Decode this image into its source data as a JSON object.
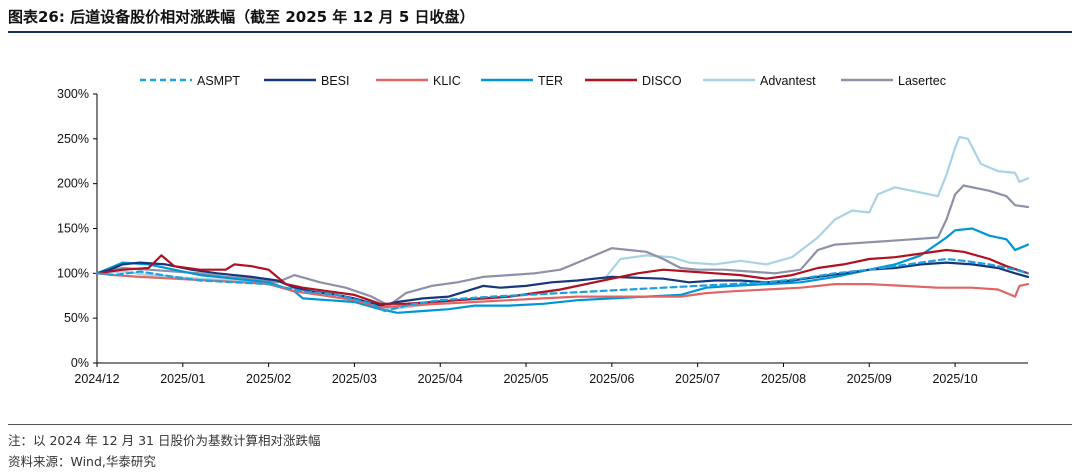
{
  "header": {
    "title": "图表26:   后道设备股价相对涨跌幅（截至 2025 年 12 月 5 日收盘）"
  },
  "footer": {
    "note": "注：以 2024 年 12 月 31 日股价为基数计算相对涨跌幅",
    "source": "资料来源：Wind,华泰研究"
  },
  "chart_data": {
    "type": "line",
    "title": "后道设备股价相对涨跌幅（截至 2025 年 12 月 5 日收盘）",
    "xlabel": "",
    "ylabel": "",
    "x_ticks": [
      "2024/12",
      "2025/01",
      "2025/02",
      "2025/03",
      "2025/04",
      "2025/05",
      "2025/06",
      "2025/07",
      "2025/08",
      "2025/09",
      "2025/10"
    ],
    "y_ticks": [
      "0%",
      "50%",
      "100%",
      "150%",
      "200%",
      "250%",
      "300%"
    ],
    "ylim": [
      0,
      300
    ],
    "x_unit": "months since 2024-12-31",
    "xlim": [
      0,
      10.85
    ],
    "grid": false,
    "legend_position": "top",
    "series": [
      {
        "name": "ASMPT",
        "color": "#1ba1e2",
        "dash": true,
        "points": [
          [
            0,
            100
          ],
          [
            0.2,
            98
          ],
          [
            0.5,
            102
          ],
          [
            0.9,
            96
          ],
          [
            1.2,
            92
          ],
          [
            1.6,
            90
          ],
          [
            2.0,
            88
          ],
          [
            2.4,
            80
          ],
          [
            2.8,
            76
          ],
          [
            3.2,
            66
          ],
          [
            3.35,
            58
          ],
          [
            3.7,
            66
          ],
          [
            4.0,
            70
          ],
          [
            4.3,
            72
          ],
          [
            4.6,
            74
          ],
          [
            5.0,
            76
          ],
          [
            5.4,
            78
          ],
          [
            5.8,
            80
          ],
          [
            6.2,
            82
          ],
          [
            6.6,
            84
          ],
          [
            7.0,
            86
          ],
          [
            7.4,
            88
          ],
          [
            7.8,
            90
          ],
          [
            8.2,
            94
          ],
          [
            8.6,
            100
          ],
          [
            9.0,
            104
          ],
          [
            9.3,
            108
          ],
          [
            9.6,
            112
          ],
          [
            9.9,
            116
          ],
          [
            10.1,
            114
          ],
          [
            10.4,
            110
          ],
          [
            10.7,
            104
          ],
          [
            10.85,
            100
          ]
        ]
      },
      {
        "name": "BESI",
        "color": "#16387a",
        "dash": false,
        "points": [
          [
            0,
            100
          ],
          [
            0.15,
            104
          ],
          [
            0.3,
            110
          ],
          [
            0.5,
            112
          ],
          [
            0.8,
            110
          ],
          [
            1.1,
            104
          ],
          [
            1.4,
            100
          ],
          [
            1.8,
            96
          ],
          [
            2.1,
            92
          ],
          [
            2.3,
            84
          ],
          [
            2.5,
            80
          ],
          [
            2.8,
            76
          ],
          [
            3.0,
            72
          ],
          [
            3.3,
            64
          ],
          [
            3.5,
            68
          ],
          [
            3.8,
            72
          ],
          [
            4.1,
            74
          ],
          [
            4.3,
            80
          ],
          [
            4.5,
            86
          ],
          [
            4.7,
            84
          ],
          [
            5.0,
            86
          ],
          [
            5.3,
            90
          ],
          [
            5.6,
            92
          ],
          [
            6.0,
            96
          ],
          [
            6.3,
            95
          ],
          [
            6.6,
            94
          ],
          [
            6.9,
            90
          ],
          [
            7.2,
            92
          ],
          [
            7.5,
            92
          ],
          [
            7.8,
            90
          ],
          [
            8.1,
            92
          ],
          [
            8.4,
            96
          ],
          [
            8.7,
            100
          ],
          [
            9.0,
            104
          ],
          [
            9.3,
            106
          ],
          [
            9.6,
            110
          ],
          [
            9.9,
            112
          ],
          [
            10.2,
            110
          ],
          [
            10.5,
            106
          ],
          [
            10.7,
            100
          ],
          [
            10.85,
            96
          ]
        ]
      },
      {
        "name": "KLIC",
        "color": "#e06666",
        "dash": false,
        "points": [
          [
            0,
            100
          ],
          [
            0.2,
            98
          ],
          [
            0.5,
            96
          ],
          [
            0.9,
            94
          ],
          [
            1.3,
            92
          ],
          [
            1.7,
            90
          ],
          [
            2.0,
            88
          ],
          [
            2.3,
            80
          ],
          [
            2.6,
            76
          ],
          [
            3.0,
            70
          ],
          [
            3.3,
            62
          ],
          [
            3.6,
            64
          ],
          [
            4.0,
            66
          ],
          [
            4.4,
            68
          ],
          [
            4.8,
            70
          ],
          [
            5.2,
            72
          ],
          [
            5.6,
            74
          ],
          [
            6.0,
            74
          ],
          [
            6.4,
            74
          ],
          [
            6.8,
            74
          ],
          [
            7.1,
            78
          ],
          [
            7.4,
            80
          ],
          [
            7.8,
            82
          ],
          [
            8.2,
            84
          ],
          [
            8.6,
            88
          ],
          [
            9.0,
            88
          ],
          [
            9.4,
            86
          ],
          [
            9.8,
            84
          ],
          [
            10.2,
            84
          ],
          [
            10.5,
            82
          ],
          [
            10.7,
            74
          ],
          [
            10.75,
            86
          ],
          [
            10.85,
            88
          ]
        ]
      },
      {
        "name": "TER",
        "color": "#0096d6",
        "dash": false,
        "points": [
          [
            0,
            100
          ],
          [
            0.15,
            106
          ],
          [
            0.3,
            112
          ],
          [
            0.6,
            110
          ],
          [
            0.9,
            104
          ],
          [
            1.2,
            98
          ],
          [
            1.6,
            94
          ],
          [
            2.0,
            90
          ],
          [
            2.3,
            80
          ],
          [
            2.4,
            72
          ],
          [
            2.7,
            70
          ],
          [
            3.0,
            68
          ],
          [
            3.3,
            60
          ],
          [
            3.5,
            56
          ],
          [
            3.8,
            58
          ],
          [
            4.1,
            60
          ],
          [
            4.4,
            64
          ],
          [
            4.8,
            64
          ],
          [
            5.2,
            66
          ],
          [
            5.6,
            70
          ],
          [
            6.0,
            72
          ],
          [
            6.4,
            74
          ],
          [
            6.8,
            76
          ],
          [
            7.1,
            84
          ],
          [
            7.4,
            86
          ],
          [
            7.8,
            88
          ],
          [
            8.2,
            90
          ],
          [
            8.6,
            96
          ],
          [
            9.0,
            104
          ],
          [
            9.3,
            110
          ],
          [
            9.6,
            120
          ],
          [
            9.9,
            140
          ],
          [
            10.0,
            148
          ],
          [
            10.2,
            150
          ],
          [
            10.4,
            142
          ],
          [
            10.6,
            138
          ],
          [
            10.7,
            126
          ],
          [
            10.85,
            132
          ]
        ]
      },
      {
        "name": "DISCO",
        "color": "#b01020",
        "dash": false,
        "points": [
          [
            0,
            100
          ],
          [
            0.3,
            104
          ],
          [
            0.6,
            106
          ],
          [
            0.75,
            120
          ],
          [
            0.9,
            108
          ],
          [
            1.2,
            104
          ],
          [
            1.5,
            104
          ],
          [
            1.6,
            110
          ],
          [
            1.8,
            108
          ],
          [
            2.0,
            104
          ],
          [
            2.2,
            88
          ],
          [
            2.4,
            84
          ],
          [
            2.7,
            80
          ],
          [
            3.0,
            76
          ],
          [
            3.3,
            66
          ],
          [
            3.6,
            66
          ],
          [
            3.9,
            68
          ],
          [
            4.2,
            70
          ],
          [
            4.5,
            72
          ],
          [
            4.8,
            74
          ],
          [
            5.1,
            78
          ],
          [
            5.4,
            82
          ],
          [
            5.7,
            88
          ],
          [
            6.0,
            94
          ],
          [
            6.3,
            100
          ],
          [
            6.6,
            104
          ],
          [
            6.9,
            102
          ],
          [
            7.2,
            100
          ],
          [
            7.5,
            98
          ],
          [
            7.8,
            94
          ],
          [
            8.1,
            98
          ],
          [
            8.4,
            106
          ],
          [
            8.7,
            110
          ],
          [
            9.0,
            116
          ],
          [
            9.3,
            118
          ],
          [
            9.6,
            122
          ],
          [
            9.9,
            126
          ],
          [
            10.1,
            124
          ],
          [
            10.4,
            116
          ],
          [
            10.6,
            108
          ],
          [
            10.85,
            100
          ]
        ]
      },
      {
        "name": "Advantest",
        "color": "#a9d3e4",
        "dash": false,
        "points": [
          [
            0,
            100
          ],
          [
            0.3,
            102
          ],
          [
            0.6,
            98
          ],
          [
            0.9,
            96
          ],
          [
            1.2,
            94
          ],
          [
            1.6,
            92
          ],
          [
            2.0,
            88
          ],
          [
            2.3,
            80
          ],
          [
            2.6,
            76
          ],
          [
            3.0,
            70
          ],
          [
            3.3,
            60
          ],
          [
            3.6,
            62
          ],
          [
            3.9,
            66
          ],
          [
            4.2,
            70
          ],
          [
            4.6,
            72
          ],
          [
            5.0,
            76
          ],
          [
            5.3,
            80
          ],
          [
            5.6,
            86
          ],
          [
            5.9,
            92
          ],
          [
            6.1,
            116
          ],
          [
            6.4,
            120
          ],
          [
            6.7,
            118
          ],
          [
            6.9,
            112
          ],
          [
            7.2,
            110
          ],
          [
            7.5,
            114
          ],
          [
            7.8,
            110
          ],
          [
            8.1,
            118
          ],
          [
            8.4,
            140
          ],
          [
            8.6,
            160
          ],
          [
            8.8,
            170
          ],
          [
            9.0,
            168
          ],
          [
            9.1,
            188
          ],
          [
            9.3,
            196
          ],
          [
            9.6,
            190
          ],
          [
            9.8,
            186
          ],
          [
            9.9,
            210
          ],
          [
            10.0,
            240
          ],
          [
            10.05,
            252
          ],
          [
            10.15,
            250
          ],
          [
            10.3,
            222
          ],
          [
            10.5,
            214
          ],
          [
            10.7,
            212
          ],
          [
            10.75,
            202
          ],
          [
            10.85,
            206
          ]
        ]
      },
      {
        "name": "Lasertec",
        "color": "#8d91a8",
        "dash": false,
        "points": [
          [
            0,
            100
          ],
          [
            0.3,
            106
          ],
          [
            0.6,
            104
          ],
          [
            0.9,
            102
          ],
          [
            1.2,
            100
          ],
          [
            1.5,
            96
          ],
          [
            1.8,
            94
          ],
          [
            2.1,
            90
          ],
          [
            2.3,
            98
          ],
          [
            2.6,
            90
          ],
          [
            2.9,
            84
          ],
          [
            3.2,
            74
          ],
          [
            3.4,
            64
          ],
          [
            3.6,
            78
          ],
          [
            3.9,
            86
          ],
          [
            4.2,
            90
          ],
          [
            4.5,
            96
          ],
          [
            4.8,
            98
          ],
          [
            5.1,
            100
          ],
          [
            5.4,
            104
          ],
          [
            5.6,
            112
          ],
          [
            5.8,
            120
          ],
          [
            6.0,
            128
          ],
          [
            6.2,
            126
          ],
          [
            6.4,
            124
          ],
          [
            6.6,
            116
          ],
          [
            6.8,
            106
          ],
          [
            7.0,
            104
          ],
          [
            7.3,
            104
          ],
          [
            7.6,
            102
          ],
          [
            7.9,
            100
          ],
          [
            8.2,
            104
          ],
          [
            8.4,
            126
          ],
          [
            8.6,
            132
          ],
          [
            8.9,
            134
          ],
          [
            9.2,
            136
          ],
          [
            9.5,
            138
          ],
          [
            9.8,
            140
          ],
          [
            9.9,
            160
          ],
          [
            10.0,
            188
          ],
          [
            10.1,
            198
          ],
          [
            10.4,
            192
          ],
          [
            10.6,
            186
          ],
          [
            10.7,
            176
          ],
          [
            10.85,
            174
          ]
        ]
      }
    ]
  }
}
